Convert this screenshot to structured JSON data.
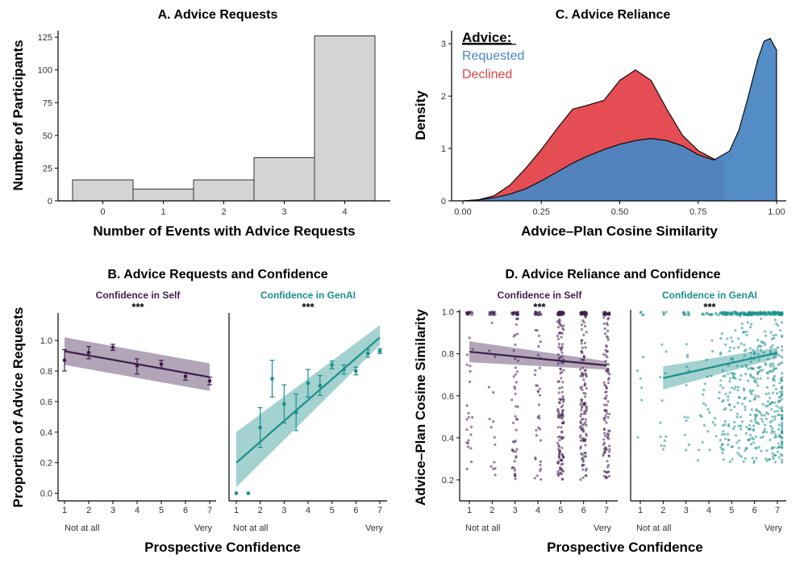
{
  "colors": {
    "self": "#3f1f4e",
    "genai": "#1a8f8a",
    "requested": "#4b86c2",
    "declined": "#e2434a",
    "hist_fill": "#d4d4d4",
    "axis": "#000000"
  },
  "chart_data": [
    {
      "id": "A",
      "type": "bar",
      "title": "A. Advice Requests",
      "xlabel": "Number of Events with Advice Requests",
      "ylabel": "Number of Participants",
      "categories": [
        "0",
        "1",
        "2",
        "3",
        "4"
      ],
      "values": [
        16,
        9,
        16,
        33,
        126
      ],
      "ylim": [
        0,
        130
      ],
      "yticks": [
        0,
        25,
        50,
        75,
        100,
        125
      ],
      "ytick_labels": [
        "0",
        "25",
        "50",
        "75",
        "100",
        "125"
      ]
    },
    {
      "id": "C",
      "type": "area",
      "title": "C. Advice Reliance",
      "xlabel": "Advice–Plan Cosine Similarity",
      "ylabel": "Density",
      "xlim": [
        -0.05,
        1.02
      ],
      "ylim": [
        0,
        3.25
      ],
      "xticks": [
        0,
        0.25,
        0.5,
        0.75,
        1.0
      ],
      "xtick_labels": [
        "0.00",
        "0.25",
        "0.50",
        "0.75",
        "1.00"
      ],
      "yticks": [
        0,
        1,
        2,
        3
      ],
      "ytick_labels": [
        "0",
        "1",
        "2",
        "3"
      ],
      "legend_title": "Advice:",
      "series": [
        {
          "name": "Declined",
          "color_key": "declined",
          "x": [
            0.0,
            0.05,
            0.1,
            0.15,
            0.2,
            0.25,
            0.3,
            0.35,
            0.4,
            0.45,
            0.5,
            0.55,
            0.6,
            0.65,
            0.7,
            0.75,
            0.8,
            0.83
          ],
          "y": [
            0.0,
            0.02,
            0.1,
            0.3,
            0.62,
            0.98,
            1.38,
            1.75,
            1.83,
            1.92,
            2.3,
            2.5,
            2.3,
            1.75,
            1.25,
            0.96,
            0.8,
            0.75
          ]
        },
        {
          "name": "Requested",
          "color_key": "requested",
          "x": [
            0.0,
            0.05,
            0.1,
            0.15,
            0.2,
            0.25,
            0.3,
            0.35,
            0.4,
            0.45,
            0.5,
            0.55,
            0.6,
            0.65,
            0.7,
            0.75,
            0.8,
            0.85,
            0.88,
            0.91,
            0.94,
            0.96,
            0.98,
            1.0
          ],
          "y": [
            0.0,
            0.02,
            0.06,
            0.13,
            0.23,
            0.38,
            0.55,
            0.72,
            0.86,
            0.98,
            1.08,
            1.15,
            1.19,
            1.15,
            1.05,
            0.88,
            0.78,
            0.95,
            1.35,
            2.0,
            2.7,
            3.05,
            3.1,
            2.88
          ]
        }
      ]
    },
    {
      "id": "B",
      "type": "line",
      "title": "B. Advice Requests and Confidence",
      "xlabel": "Prospective Confidence",
      "ylabel": "Proportion of Advice Requests",
      "ylim": [
        -0.05,
        1.18
      ],
      "yticks": [
        0,
        0.2,
        0.4,
        0.6,
        0.8,
        1.0
      ],
      "ytick_labels": [
        "0.0",
        "0.2",
        "0.4",
        "0.6",
        "0.8",
        "1.0"
      ],
      "xticks": [
        "1",
        "2",
        "3",
        "4",
        "5",
        "6",
        "7"
      ],
      "x_end_labels": [
        "Not at all",
        "Very"
      ],
      "significance": "***",
      "panels": [
        {
          "strip": "Confidence in Self",
          "color_key": "self",
          "points": [
            {
              "x": 1,
              "y": 0.87,
              "lo": 0.8,
              "hi": 0.94
            },
            {
              "x": 2,
              "y": 0.92,
              "lo": 0.88,
              "hi": 0.96
            },
            {
              "x": 3,
              "y": 0.955,
              "lo": 0.935,
              "hi": 0.975
            },
            {
              "x": 4,
              "y": 0.835,
              "lo": 0.78,
              "hi": 0.88
            },
            {
              "x": 5,
              "y": 0.845,
              "lo": 0.82,
              "hi": 0.87
            },
            {
              "x": 6,
              "y": 0.765,
              "lo": 0.74,
              "hi": 0.79
            },
            {
              "x": 7,
              "y": 0.735,
              "lo": 0.71,
              "hi": 0.76
            }
          ],
          "fit": {
            "x0": 1,
            "y0": 0.93,
            "x1": 7,
            "y1": 0.76
          },
          "band": {
            "lo0": 0.84,
            "hi0": 1.02,
            "lo1": 0.67,
            "hi1": 0.85
          }
        },
        {
          "strip": "Confidence in GenAI",
          "color_key": "genai",
          "points": [
            {
              "x": 1,
              "y": 0.0
            },
            {
              "x": 1.5,
              "y": 0.0
            },
            {
              "x": 2,
              "y": 0.43,
              "lo": 0.3,
              "hi": 0.56
            },
            {
              "x": 2.5,
              "y": 0.75,
              "lo": 0.63,
              "hi": 0.87
            },
            {
              "x": 3,
              "y": 0.585,
              "lo": 0.46,
              "hi": 0.71
            },
            {
              "x": 3.5,
              "y": 0.53,
              "lo": 0.41,
              "hi": 0.65
            },
            {
              "x": 4,
              "y": 0.72,
              "lo": 0.63,
              "hi": 0.81
            },
            {
              "x": 4.5,
              "y": 0.705,
              "lo": 0.64,
              "hi": 0.77
            },
            {
              "x": 5,
              "y": 0.84,
              "lo": 0.815,
              "hi": 0.865
            },
            {
              "x": 5.5,
              "y": 0.81,
              "lo": 0.78,
              "hi": 0.84
            },
            {
              "x": 6,
              "y": 0.8,
              "lo": 0.775,
              "hi": 0.825
            },
            {
              "x": 6.5,
              "y": 0.915,
              "lo": 0.89,
              "hi": 0.94
            },
            {
              "x": 7,
              "y": 0.93,
              "lo": 0.915,
              "hi": 0.945
            }
          ],
          "fit": {
            "x0": 1,
            "y0": 0.2,
            "x1": 7,
            "y1": 1.02
          },
          "band": {
            "lo0": 0.04,
            "hi0": 0.4,
            "lo1": 0.97,
            "hi1": 1.1
          }
        }
      ]
    },
    {
      "id": "D",
      "type": "scatter",
      "title": "D. Advice Reliance and Confidence",
      "xlabel": "Prospective Confidence",
      "ylabel": "Advice–Plan Cosine Similarity",
      "ylim": [
        0.1,
        1.01
      ],
      "yticks": [
        0.2,
        0.4,
        0.6,
        0.8,
        1.0
      ],
      "ytick_labels": [
        "0.2",
        "0.4",
        "0.6",
        "0.8",
        "1.0"
      ],
      "xticks": [
        "1",
        "2",
        "3",
        "4",
        "5",
        "6",
        "7"
      ],
      "x_end_labels": [
        "Not at all",
        "Very"
      ],
      "significance": "***",
      "panels": [
        {
          "strip": "Confidence in Self",
          "color_key": "self",
          "fit": {
            "x0": 1,
            "y0": 0.81,
            "x1": 7,
            "y1": 0.745
          },
          "band": {
            "lo0": 0.76,
            "hi0": 0.86,
            "lo1": 0.725,
            "hi1": 0.765
          },
          "point_counts": [
            40,
            30,
            70,
            50,
            200,
            180,
            130
          ],
          "point_xs": [
            1,
            2,
            3,
            4,
            5,
            6,
            7
          ]
        },
        {
          "strip": "Confidence in GenAI",
          "color_key": "genai",
          "fit": {
            "x0": 2,
            "y0": 0.685,
            "x1": 7,
            "y1": 0.805
          },
          "band": {
            "lo0": 0.63,
            "hi0": 0.74,
            "lo1": 0.78,
            "hi1": 0.83
          },
          "point_counts": [
            10,
            16,
            22,
            40,
            160,
            220,
            230
          ],
          "point_xs": [
            1,
            2,
            3,
            4,
            5,
            6,
            7
          ]
        }
      ]
    }
  ]
}
